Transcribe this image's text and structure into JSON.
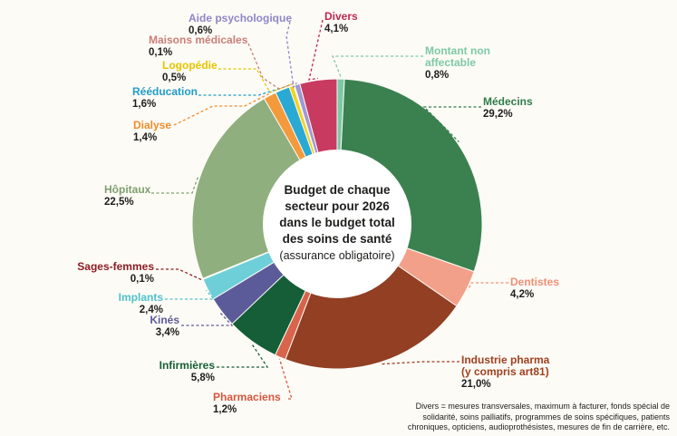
{
  "chart_data": {
    "type": "pie",
    "title_lines": [
      "Budget de chaque",
      "secteur pour 2026",
      "dans le budget total",
      "des soins de santé"
    ],
    "subtitle": "(assurance obligatoire)",
    "series": [
      {
        "name": "Montant non affectable",
        "name_lines": [
          "Montant non",
          "affectable"
        ],
        "value": 0.8,
        "label": "0,8%",
        "color": "#7dc9a6",
        "name_color": "#7dc9a6"
      },
      {
        "name": "Médecins",
        "name_lines": [
          "Médecins"
        ],
        "value": 29.2,
        "label": "29,2%",
        "color": "#3b8150",
        "name_color": "#2f7d4c"
      },
      {
        "name": "Dentistes",
        "name_lines": [
          "Dentistes"
        ],
        "value": 4.2,
        "label": "4,2%",
        "color": "#f2a089",
        "name_color": "#ee8f76"
      },
      {
        "name": "Industrie pharma (y compris art81)",
        "name_lines": [
          "Industrie pharma",
          "(y compris art81)"
        ],
        "value": 21.0,
        "label": "21,0%",
        "color": "#923f24",
        "name_color": "#a0401f"
      },
      {
        "name": "Pharmaciens",
        "name_lines": [
          "Pharmaciens"
        ],
        "value": 1.2,
        "label": "1,2%",
        "color": "#d8644b",
        "name_color": "#d4573d"
      },
      {
        "name": "Infirmières",
        "name_lines": [
          "Infirmières"
        ],
        "value": 5.8,
        "label": "5,8%",
        "color": "#155e37",
        "name_color": "#155e37"
      },
      {
        "name": "Kinés",
        "name_lines": [
          "Kinés"
        ],
        "value": 3.4,
        "label": "3,4%",
        "color": "#5c5b9a",
        "name_color": "#5c5b9a"
      },
      {
        "name": "Implants",
        "name_lines": [
          "Implants"
        ],
        "value": 2.4,
        "label": "2,4%",
        "color": "#6fcfd8",
        "name_color": "#4fc2cc"
      },
      {
        "name": "Sages-femmes",
        "name_lines": [
          "Sages-femmes"
        ],
        "value": 0.1,
        "label": "0,1%",
        "color": "#8c1d23",
        "name_color": "#8c1d23"
      },
      {
        "name": "Hôpitaux",
        "name_lines": [
          "Hôpitaux"
        ],
        "value": 22.5,
        "label": "22,5%",
        "color": "#8faf7e",
        "name_color": "#7e9f6e"
      },
      {
        "name": "Dialyse",
        "name_lines": [
          "Dialyse"
        ],
        "value": 1.4,
        "label": "1,4%",
        "color": "#f39a3c",
        "name_color": "#f08d2b"
      },
      {
        "name": "Rééducation",
        "name_lines": [
          "Rééducation"
        ],
        "value": 1.6,
        "label": "1,6%",
        "color": "#2aa9d3",
        "name_color": "#1f9dca"
      },
      {
        "name": "Logopédie",
        "name_lines": [
          "Logopédie"
        ],
        "value": 0.5,
        "label": "0,5%",
        "color": "#f3d21b",
        "name_color": "#e7c400"
      },
      {
        "name": "Maisons médicales",
        "name_lines": [
          "Maisons médicales"
        ],
        "value": 0.1,
        "label": "0,1%",
        "color": "#c98a84",
        "name_color": "#c97f76"
      },
      {
        "name": "Aide psychologique",
        "name_lines": [
          "Aide psychologique"
        ],
        "value": 0.6,
        "label": "0,6%",
        "color": "#9f98d2",
        "name_color": "#8f86c9"
      },
      {
        "name": "Divers",
        "name_lines": [
          "Divers"
        ],
        "value": 4.1,
        "label": "4,1%",
        "color": "#c83a60",
        "name_color": "#c0284f"
      }
    ]
  },
  "footnote": "Divers = mesures transversales, maximum à facturer, fonds spécial de solidarité, soins palliatifs, programmes de soins spécifiques, patients chroniques, opticiens, audioprothésistes, mesures de fin de carrière, etc."
}
